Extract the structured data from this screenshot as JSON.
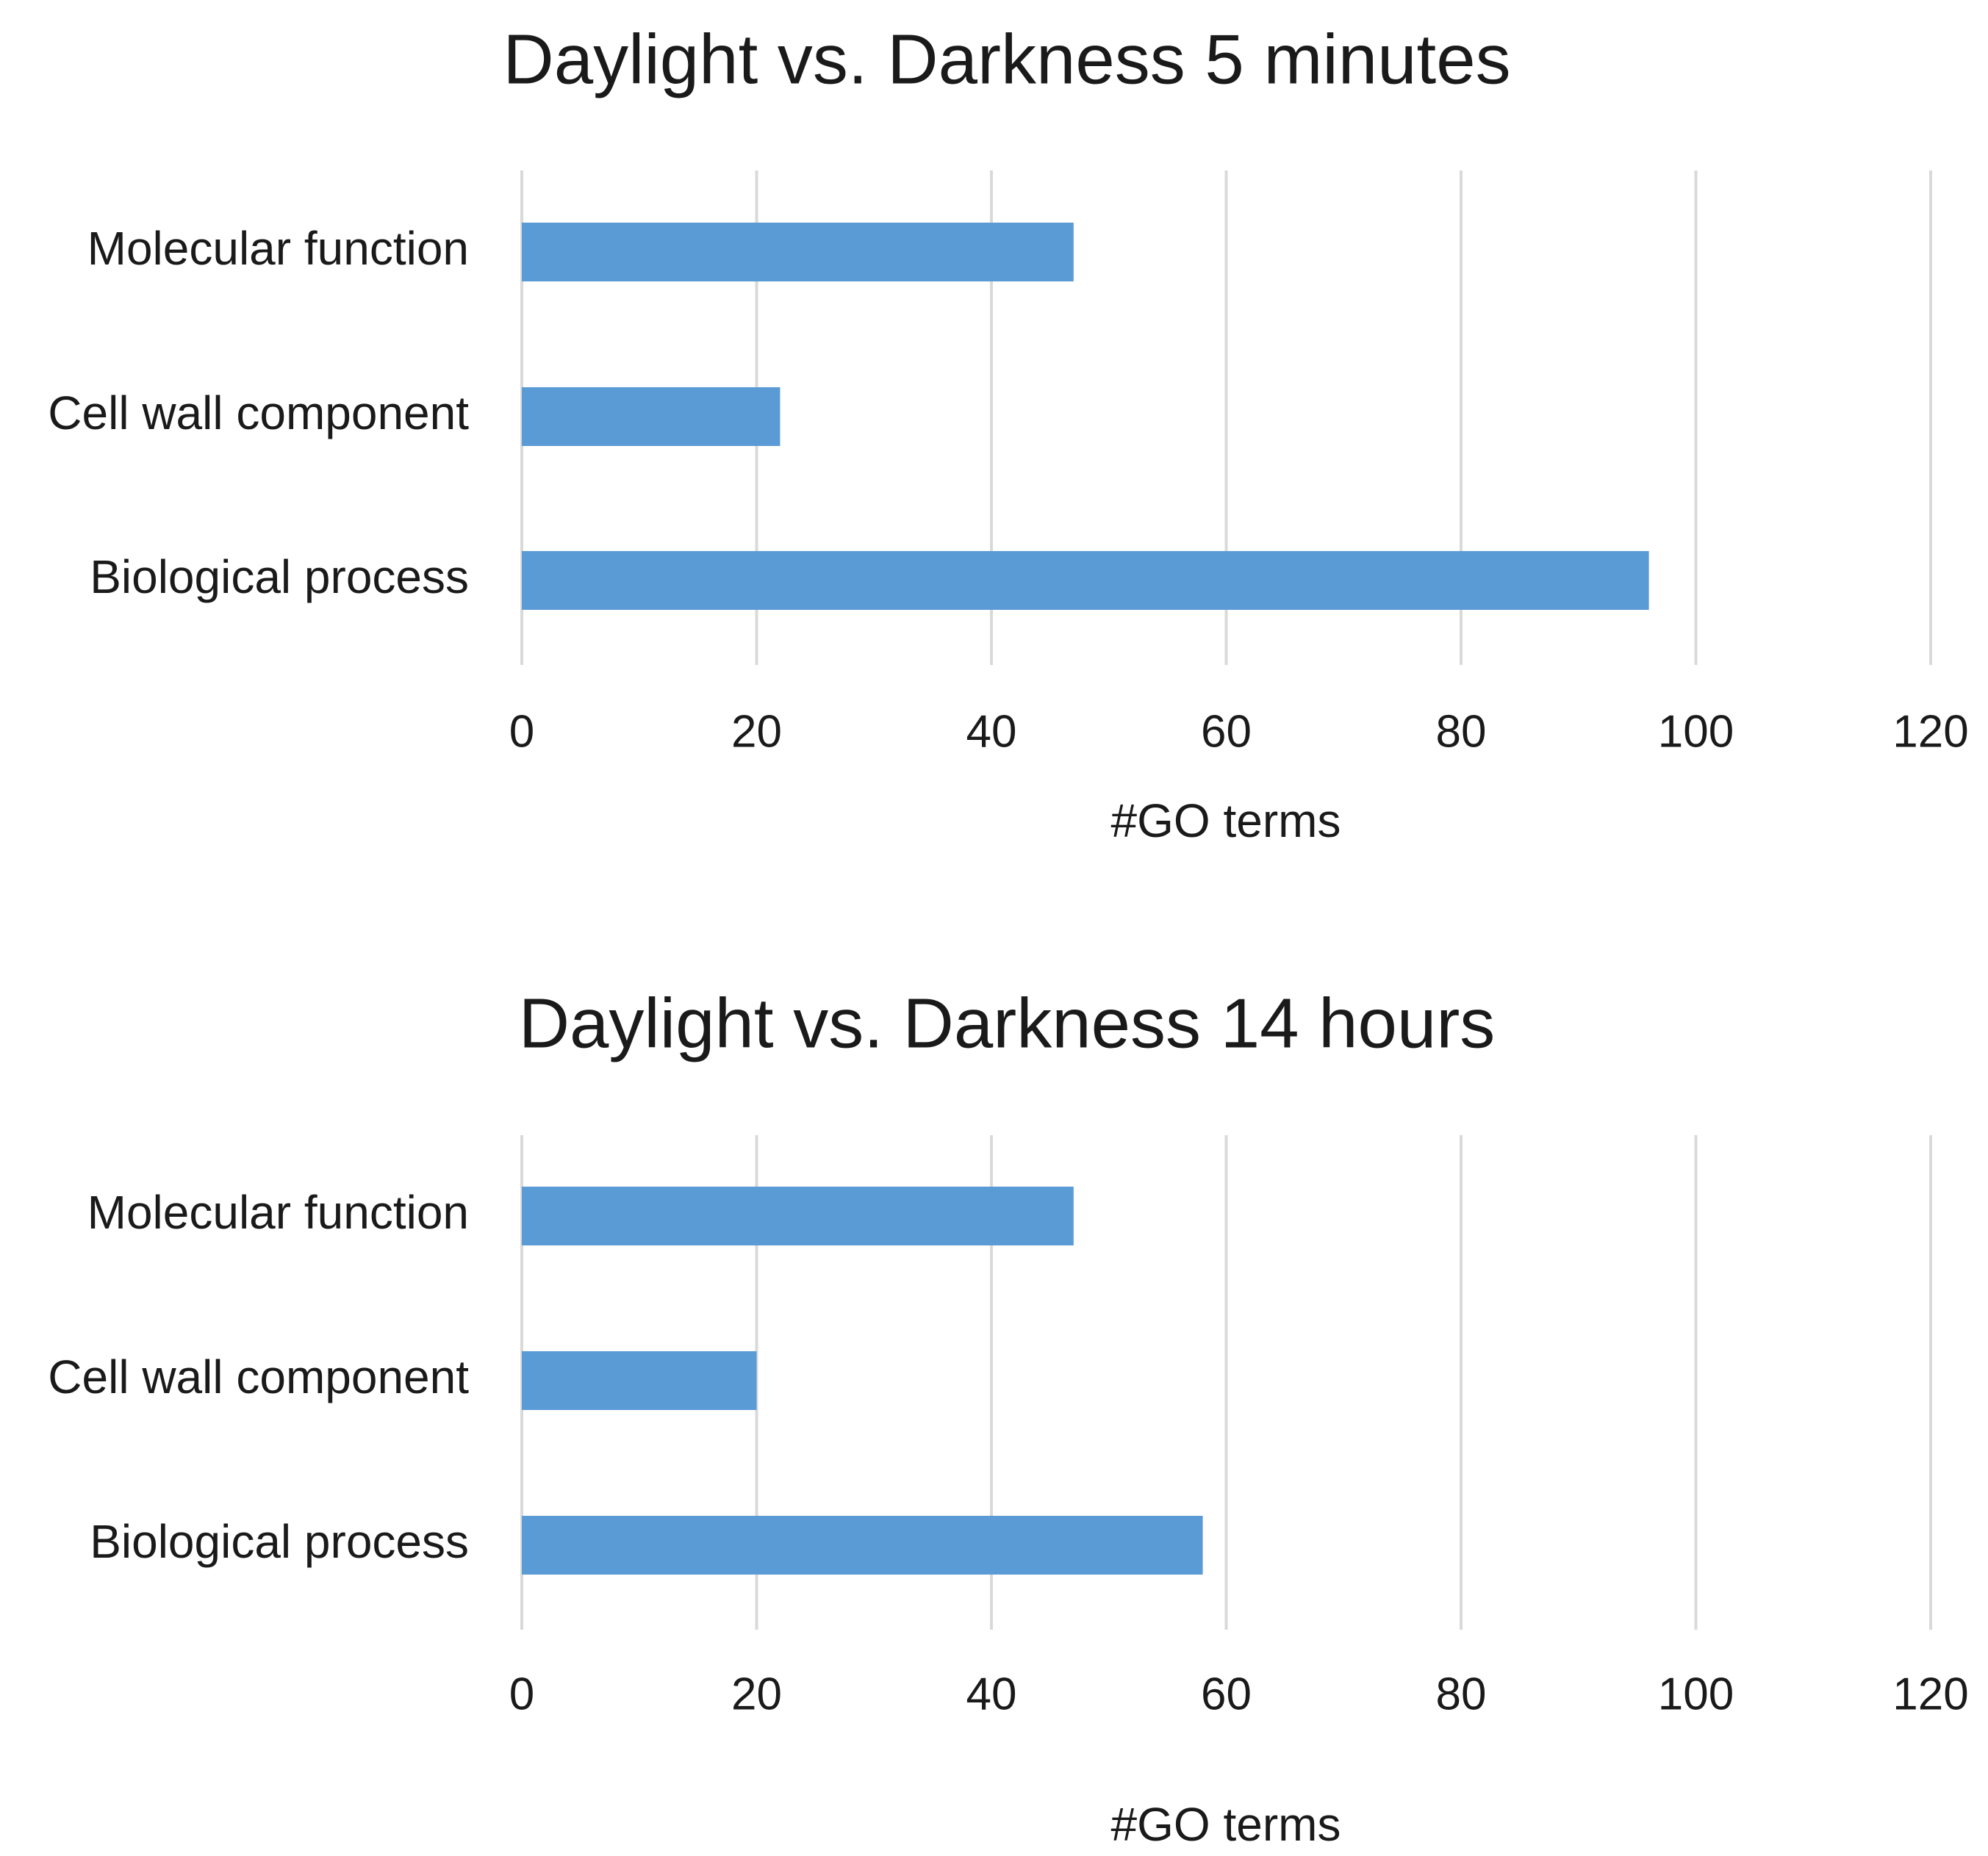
{
  "chart_data": [
    {
      "type": "bar",
      "orientation": "horizontal",
      "title": "Daylight vs. Darkness 5 minutes",
      "categories": [
        "Molecular function",
        "Cell wall component",
        "Biological process"
      ],
      "values": [
        47,
        22,
        96
      ],
      "xlabel": "#GO terms",
      "ylabel": "",
      "xlim": [
        0,
        120
      ],
      "ticks": [
        "0",
        "20",
        "40",
        "60",
        "80",
        "100",
        "120"
      ],
      "grid": true,
      "bar_color": "#5b9bd5"
    },
    {
      "type": "bar",
      "orientation": "horizontal",
      "title": "Daylight vs. Darkness 14 hours",
      "categories": [
        "Molecular function",
        "Cell wall component",
        "Biological process"
      ],
      "values": [
        47,
        20,
        58
      ],
      "xlabel": "#GO terms",
      "ylabel": "",
      "xlim": [
        0,
        120
      ],
      "ticks": [
        "0",
        "20",
        "40",
        "60",
        "80",
        "100",
        "120"
      ],
      "grid": true,
      "bar_color": "#5b9bd5"
    }
  ]
}
